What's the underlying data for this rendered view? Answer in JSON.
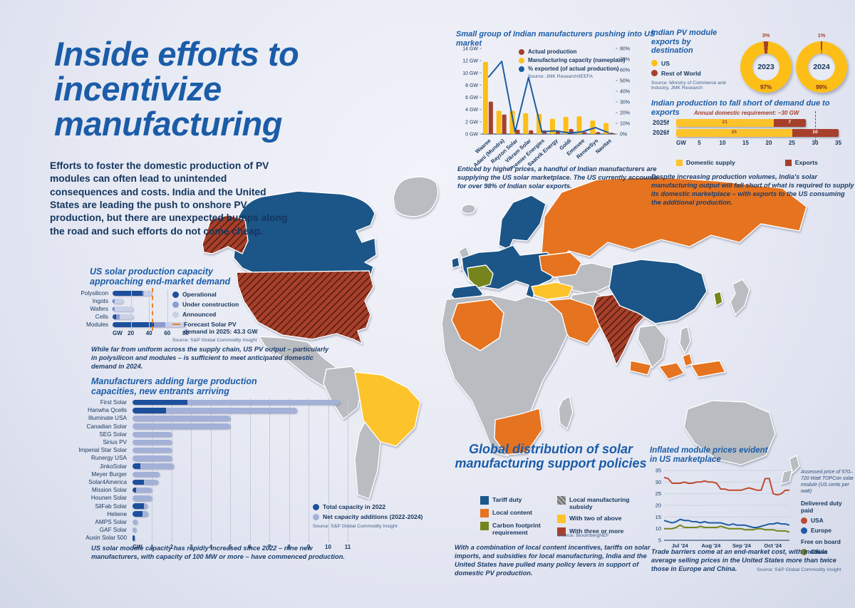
{
  "page": {
    "title_lines": [
      "Inside efforts to",
      "incentivize",
      "manufacturing"
    ],
    "intro": "Efforts to foster the domestic production of PV modules can often lead to unintended consequences and costs. India and the United States are leading the push to onshore PV production, but there are unexpected bumps along the road and such efforts do not come cheap."
  },
  "colors": {
    "title_blue": "#1b5ca8",
    "navy": "#16365c",
    "bar_dark_blue": "#1d4f9c",
    "bar_mid_blue": "#8b9cd0",
    "bar_light_blue": "#c9d0e8",
    "additions_blue": "#a3b1d8",
    "orange_dash": "#e8821e",
    "tariff": "#1c5587",
    "local_content": "#e5731f",
    "carbon": "#75841d",
    "subsidy": "#a8a8a8",
    "two": "#fdc32a",
    "three": "#a6402a",
    "none": "#b9bcc0",
    "donut_yellow": "#fdbf17",
    "donut_red": "#a6402a",
    "line_usa": "#bf4a30",
    "line_europe": "#1e5ca3",
    "line_china": "#75841d"
  },
  "map": {
    "title": "Global distribution of solar manufacturing support policies",
    "legend": [
      {
        "label": "Tariff duty",
        "key": "tariff",
        "hatched": false
      },
      {
        "label": "Local content",
        "key": "local_content",
        "hatched": false
      },
      {
        "label": "Carbon footprint requirement",
        "key": "carbon",
        "hatched": false
      },
      {
        "label": "Local manufacturing subsidy",
        "key": "subsidy",
        "hatched": true
      },
      {
        "label": "With two of above",
        "key": "two",
        "hatched": false
      },
      {
        "label": "With three or more",
        "key": "three",
        "hatched": false
      }
    ],
    "source": "Source: BloombergNEF",
    "caption": "With a combination of local content incentives, tariffs on solar imports, and subsidies for local manufacturing, India and the United States have pulled many policy levers in support of domestic PV production.",
    "countries": [
      {
        "id": "greenland",
        "category": "none",
        "hatched": false
      },
      {
        "id": "canada",
        "category": "tariff",
        "hatched": false
      },
      {
        "id": "alaska",
        "category": "three",
        "hatched": true
      },
      {
        "id": "usa",
        "category": "three",
        "hatched": true
      },
      {
        "id": "mexico",
        "category": "none",
        "hatched": false
      },
      {
        "id": "sa_nw",
        "category": "none",
        "hatched": false
      },
      {
        "id": "brazil",
        "category": "two",
        "hatched": false
      },
      {
        "id": "sa_s",
        "category": "none",
        "hatched": false
      },
      {
        "id": "iceland",
        "category": "none",
        "hatched": false
      },
      {
        "id": "uk",
        "category": "none",
        "hatched": false
      },
      {
        "id": "ireland",
        "category": "tariff",
        "hatched": false
      },
      {
        "id": "scandinavia",
        "category": "tariff",
        "hatched": false
      },
      {
        "id": "europe",
        "category": "tariff",
        "hatched": false
      },
      {
        "id": "france",
        "category": "carbon",
        "hatched": false
      },
      {
        "id": "iberia",
        "category": "tariff",
        "hatched": false
      },
      {
        "id": "russia",
        "category": "local_content",
        "hatched": false
      },
      {
        "id": "ukraine",
        "category": "local_content",
        "hatched": false
      },
      {
        "id": "turkey",
        "category": "two",
        "hatched": false
      },
      {
        "id": "mideast",
        "category": "local_content",
        "hatched": false
      },
      {
        "id": "africa",
        "category": "none",
        "hatched": false
      },
      {
        "id": "algeria",
        "category": "local_content",
        "hatched": false
      },
      {
        "id": "south_africa",
        "category": "local_content",
        "hatched": false
      },
      {
        "id": "madagascar",
        "category": "none",
        "hatched": false
      },
      {
        "id": "stans",
        "category": "none",
        "hatched": false
      },
      {
        "id": "iran",
        "category": "none",
        "hatched": false
      },
      {
        "id": "india",
        "category": "three",
        "hatched": true
      },
      {
        "id": "china",
        "category": "tariff",
        "hatched": false
      },
      {
        "id": "indochina",
        "category": "none",
        "hatched": false
      },
      {
        "id": "indonesia",
        "category": "local_content",
        "hatched": false
      },
      {
        "id": "philippines",
        "category": "none",
        "hatched": false
      },
      {
        "id": "japan",
        "category": "none",
        "hatched": false
      },
      {
        "id": "korea",
        "category": "carbon",
        "hatched": false
      },
      {
        "id": "australia",
        "category": "none",
        "hatched": false
      },
      {
        "id": "nz",
        "category": "none",
        "hatched": false
      }
    ]
  },
  "chart_data": [
    {
      "id": "us_capacity",
      "type": "bar",
      "title": "US solar production capacity approaching end-market demand",
      "categories": [
        "Polysilicon",
        "Ingots",
        "Wafers",
        "Cells",
        "Modules"
      ],
      "series": [
        {
          "name": "Operational",
          "values": [
            33,
            1,
            1,
            4,
            45
          ]
        },
        {
          "name": "Under construction",
          "values": [
            1,
            1,
            1,
            4,
            13
          ]
        },
        {
          "name": "Announced",
          "values": [
            9,
            10,
            21,
            15,
            22
          ]
        }
      ],
      "forecast_label": "Forecast Solar PV demand in 2025: 43.3 GW",
      "forecast_value": 43.3,
      "xticks": [
        "GW",
        "20",
        "40",
        "60",
        "80"
      ],
      "xlim": [
        0,
        92
      ],
      "source": "Source: S&P Global Commodity Insight",
      "caption": "While far from uniform across the supply chain, US PV output – particularly in polysilicon and modules – is sufficient to meet anticipated domestic demand in 2024."
    },
    {
      "id": "manufacturers",
      "type": "bar",
      "title": "Manufacturers adding large production capacities, new entrants arriving",
      "legend": [
        "Total capacity in 2022",
        "Net capacity additions (2022-2024)"
      ],
      "entries": [
        {
          "name": "First Solar",
          "total_2022": 2.8,
          "additions": 7.8
        },
        {
          "name": "Hanwha Qcells",
          "total_2022": 1.7,
          "additions": 6.7
        },
        {
          "name": "Illuminate USA",
          "total_2022": 0,
          "additions": 5.0
        },
        {
          "name": "Canadian Solar",
          "total_2022": 0,
          "additions": 5.0
        },
        {
          "name": "SEG Solar",
          "total_2022": 0,
          "additions": 2.0
        },
        {
          "name": "Sirius PV",
          "total_2022": 0,
          "additions": 2.0
        },
        {
          "name": "Imperial Star Solar",
          "total_2022": 0,
          "additions": 2.0
        },
        {
          "name": "Runergy USA",
          "total_2022": 0,
          "additions": 2.0
        },
        {
          "name": "JinkoSolar",
          "total_2022": 0.4,
          "additions": 1.7
        },
        {
          "name": "Meyer Burger",
          "total_2022": 0,
          "additions": 1.4
        },
        {
          "name": "Solar4America",
          "total_2022": 0.6,
          "additions": 0.7
        },
        {
          "name": "Mission Solar",
          "total_2022": 0.2,
          "additions": 0.8
        },
        {
          "name": "Hounen Solar",
          "total_2022": 0,
          "additions": 1.0
        },
        {
          "name": "SilFab Solar",
          "total_2022": 0.6,
          "additions": 0.15
        },
        {
          "name": "Heliene",
          "total_2022": 0.5,
          "additions": 0.3
        },
        {
          "name": "AMPS Solar",
          "total_2022": 0,
          "additions": 0.25
        },
        {
          "name": "GAF Solar",
          "total_2022": 0,
          "additions": 0.2
        },
        {
          "name": "Auxin Solar 500",
          "total_2022": 0.1,
          "additions": 0
        }
      ],
      "xticks": [
        "GW",
        "1",
        "2",
        "3",
        "4",
        "5",
        "6",
        "7",
        "8",
        "9",
        "10",
        "11"
      ],
      "xlim": [
        0,
        11
      ],
      "source": "Source: S&P Global Commodity Insight",
      "caption": "US solar module capacity has rapidly increased since 2022 – nine new manufacturers, with capacity of 100 MW or more – have commenced production."
    },
    {
      "id": "indian_push",
      "type": "bar",
      "title": "Small group of Indian manufacturers pushing into US market",
      "categories": [
        "Waaree",
        "Adani (Mundra)",
        "Rayzon Solar",
        "Vikram Solar",
        "Premier Energies",
        "Saatvik Energy",
        "Goldi",
        "Emmvee",
        "RenewSys",
        "Navitas"
      ],
      "series": [
        {
          "name": "Actual production",
          "values": [
            5.3,
            3.2,
            0.7,
            0.6,
            0.6,
            0.6,
            0.8,
            0.3,
            0.3,
            0.2
          ]
        },
        {
          "name": "Manufacturing capacity (nameplate)",
          "values": [
            11.8,
            3.8,
            3.8,
            3.4,
            3.3,
            2.5,
            2.8,
            2.9,
            2.2,
            1.8
          ]
        },
        {
          "name": "% exported (of actual production)",
          "values": [
            53,
            68,
            2,
            53,
            2,
            3,
            1,
            2,
            6,
            1
          ]
        }
      ],
      "ylim_gw": [
        0,
        14
      ],
      "ylim_pct": [
        0,
        80
      ],
      "yticks_gw": [
        "0 GW",
        "2 GW",
        "4 GW",
        "6 GW",
        "8 GW",
        "10 GW",
        "12 GW",
        "14 GW"
      ],
      "yticks_pct": [
        "0%",
        "10%",
        "20%",
        "30%",
        "40%",
        "50%",
        "60%",
        "70%",
        "80%"
      ],
      "source": "Source: JMK Research/IEEFA",
      "caption": "Enticed by higher prices, a handful of Indian manufacturers are supplying the US solar marketplace. The US currently accounts for over 98% of Indian solar exports."
    },
    {
      "id": "exports_destination",
      "type": "pie",
      "title": "Indian PV module exports by destination",
      "legend": [
        "US",
        "Rest of World"
      ],
      "donuts": [
        {
          "year": "2023",
          "us": 97,
          "rest_of_world": 3,
          "us_label": "97%",
          "row_label": "3%"
        },
        {
          "year": "2024",
          "us": 99,
          "rest_of_world": 1,
          "us_label": "99%",
          "row_label": "1%"
        }
      ],
      "source": "Source: Ministry of Commerce and Industry, JMK Research"
    },
    {
      "id": "india_supply",
      "type": "bar",
      "title": "Indian production to fall short of demand due to exports",
      "annotation": "Annual domestic requirement: ~30 GW",
      "requirement": 30,
      "rows": [
        {
          "year": "2025f",
          "domestic": 21,
          "exports": 7
        },
        {
          "year": "2026f",
          "domestic": 25,
          "exports": 10
        }
      ],
      "legend": [
        "Domestic supply",
        "Exports"
      ],
      "xticks": [
        "GW",
        "5",
        "10",
        "15",
        "20",
        "25",
        "30",
        "35"
      ],
      "xlim": [
        0,
        35
      ],
      "caption": "Despite increasing production volumes, India's solar manufacturing output will fall short of what is required to supply its domestic marketplace – with exports to the US consuming the additional production."
    },
    {
      "id": "module_prices",
      "type": "line",
      "title": "Inflated module prices evident in US marketplace",
      "note": "Assessed price of 570–720 Watt TOPCon solar module (US cents per watt)",
      "group1_label": "Delivered duty paid",
      "group2_label": "Free on board",
      "xticks": [
        "Jul '24",
        "Aug '24",
        "Sep '24",
        "Oct '24"
      ],
      "yticks": [
        35,
        30,
        25,
        20,
        15,
        10,
        5
      ],
      "ylim": [
        5,
        35
      ],
      "series": [
        {
          "name": "USA",
          "color_key": "line_usa",
          "values": [
            32,
            31.5,
            29.5,
            29.5,
            29.5,
            30,
            29.5,
            29.5,
            30,
            30,
            30.5,
            30,
            30,
            29.5,
            27,
            27,
            26.5,
            26.5,
            26.5,
            26.5,
            27,
            27.5,
            27,
            26.5,
            26.5,
            31.5,
            31.5,
            25,
            24.5,
            25,
            26.5,
            26.5
          ]
        },
        {
          "name": "Europe",
          "color_key": "line_europe",
          "values": [
            13.5,
            13,
            12.5,
            13,
            14,
            13.5,
            13.5,
            13,
            13,
            12.5,
            13,
            12.5,
            12.5,
            12.5,
            12.5,
            12,
            11.5,
            12,
            11.5,
            11.5,
            11.5,
            11,
            10.5,
            10.5,
            11,
            11.5,
            12,
            12,
            12.5,
            12,
            12,
            11.5
          ]
        },
        {
          "name": "China",
          "color_key": "line_china",
          "values": [
            10,
            10,
            10,
            10.5,
            11.5,
            10.5,
            10.5,
            10.5,
            10.5,
            11,
            10.5,
            10.5,
            10.5,
            10.5,
            11,
            10.5,
            10,
            10,
            10,
            10,
            9.5,
            9.5,
            9.5,
            10,
            10,
            9.5,
            9.5,
            9.5,
            9,
            9,
            9,
            8.5
          ]
        }
      ],
      "caption": "Trade barriers come at an end-market cost, with module average selling prices in the United States more than twice those in Europe and China.",
      "source": "Source: S&P Global Commodity Insight"
    }
  ]
}
